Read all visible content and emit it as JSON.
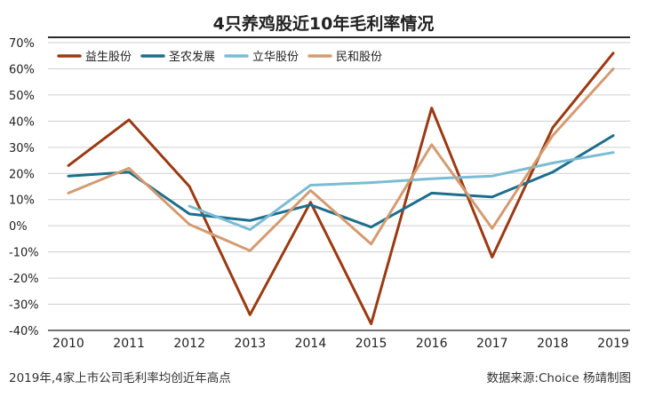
{
  "chart_data": {
    "type": "line",
    "title": "4只养鸡股近10年毛利率情况",
    "categories": [
      "2010",
      "2011",
      "2012",
      "2013",
      "2014",
      "2015",
      "2016",
      "2017",
      "2018",
      "2019"
    ],
    "ylim": [
      -40,
      70
    ],
    "yticks": [
      "70%",
      "60%",
      "50%",
      "40%",
      "30%",
      "20%",
      "10%",
      "0%",
      "-10%",
      "-20%",
      "-30%",
      "-40%"
    ],
    "grid": true,
    "legend_position": "top-left",
    "series": [
      {
        "name": "益生股份",
        "color": "#9b3a12",
        "values": [
          23,
          40.5,
          15,
          -34,
          9,
          -37.5,
          45,
          -12,
          37.5,
          66
        ]
      },
      {
        "name": "圣农发展",
        "color": "#1d6e8c",
        "values": [
          19,
          20.5,
          4.5,
          2,
          8,
          -0.5,
          12.5,
          11,
          20.5,
          34.5
        ]
      },
      {
        "name": "立华股份",
        "color": "#7bbcd4",
        "values": [
          null,
          null,
          7.5,
          -1.5,
          15.5,
          16.5,
          18,
          19,
          24,
          28
        ]
      },
      {
        "name": "民和股份",
        "color": "#d49b71",
        "values": [
          12.5,
          22,
          0.5,
          -9.5,
          13.5,
          -7,
          31,
          -1,
          34.5,
          60
        ]
      }
    ]
  },
  "footer": {
    "note": "2019年,4家上市公司毛利率均创近年高点",
    "source": "数据来源:Choice  杨靖制图"
  }
}
